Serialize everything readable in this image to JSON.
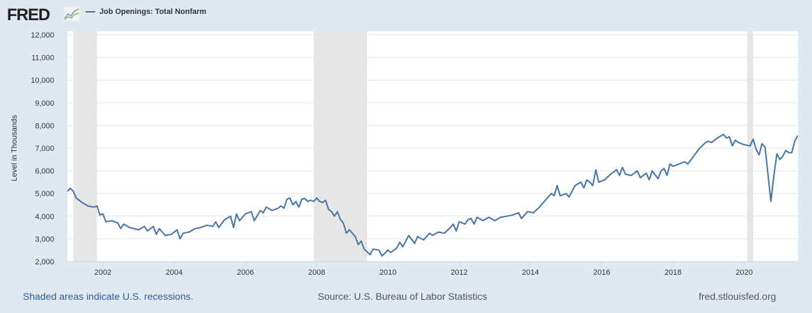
{
  "header": {
    "logo": "FRED",
    "series_label": "Job Openings: Total Nonfarm"
  },
  "footer": {
    "recessions_note": "Shaded areas indicate U.S. recessions.",
    "source": "Source: U.S. Bureau of Labor Statistics",
    "site": "fred.stlouisfed.org"
  },
  "colors": {
    "line": "#4572a7",
    "recession": "#e6e6e6",
    "background": "#e1e9f0"
  },
  "chart_data": {
    "type": "line",
    "title": "Job Openings: Total Nonfarm",
    "xlabel": "",
    "ylabel": "Level in Thousands",
    "ylim": [
      2000,
      12000
    ],
    "xlim": [
      "2001-01",
      "2021-07"
    ],
    "yticks": [
      "2,000",
      "3,000",
      "4,000",
      "5,000",
      "6,000",
      "7,000",
      "8,000",
      "9,000",
      "10,000",
      "11,000",
      "12,000"
    ],
    "ytick_values": [
      2000,
      3000,
      4000,
      5000,
      6000,
      7000,
      8000,
      9000,
      10000,
      11000,
      12000
    ],
    "xticks": [
      "2002",
      "2004",
      "2006",
      "2008",
      "2010",
      "2012",
      "2014",
      "2016",
      "2018",
      "2020"
    ],
    "grid": true,
    "legend": "top-left",
    "recessions": [
      [
        "2001-03",
        "2001-11"
      ],
      [
        "2007-12",
        "2009-06"
      ],
      [
        "2020-02",
        "2020-04"
      ]
    ],
    "series": [
      {
        "name": "Job Openings: Total Nonfarm",
        "points": [
          [
            "2001-01",
            5100
          ],
          [
            "2001-02",
            5230
          ],
          [
            "2001-03",
            5100
          ],
          [
            "2001-04",
            4800
          ],
          [
            "2001-06",
            4600
          ],
          [
            "2001-08",
            4450
          ],
          [
            "2001-10",
            4400
          ],
          [
            "2001-11",
            4450
          ],
          [
            "2001-12",
            4050
          ],
          [
            "2002-01",
            4100
          ],
          [
            "2002-02",
            3750
          ],
          [
            "2002-04",
            3800
          ],
          [
            "2002-06",
            3700
          ],
          [
            "2002-07",
            3450
          ],
          [
            "2002-08",
            3650
          ],
          [
            "2002-10",
            3500
          ],
          [
            "2003-01",
            3400
          ],
          [
            "2003-03",
            3550
          ],
          [
            "2003-04",
            3350
          ],
          [
            "2003-06",
            3550
          ],
          [
            "2003-07",
            3200
          ],
          [
            "2003-08",
            3450
          ],
          [
            "2003-10",
            3150
          ],
          [
            "2003-12",
            3200
          ],
          [
            "2004-02",
            3400
          ],
          [
            "2004-03",
            3000
          ],
          [
            "2004-04",
            3250
          ],
          [
            "2004-06",
            3300
          ],
          [
            "2004-08",
            3450
          ],
          [
            "2004-10",
            3500
          ],
          [
            "2004-12",
            3600
          ],
          [
            "2005-02",
            3550
          ],
          [
            "2005-03",
            3750
          ],
          [
            "2005-04",
            3500
          ],
          [
            "2005-06",
            3850
          ],
          [
            "2005-08",
            4000
          ],
          [
            "2005-09",
            3500
          ],
          [
            "2005-10",
            4100
          ],
          [
            "2005-11",
            3800
          ],
          [
            "2006-01",
            4100
          ],
          [
            "2006-03",
            4200
          ],
          [
            "2006-04",
            3800
          ],
          [
            "2006-06",
            4250
          ],
          [
            "2006-07",
            4150
          ],
          [
            "2006-08",
            4400
          ],
          [
            "2006-10",
            4250
          ],
          [
            "2006-12",
            4350
          ],
          [
            "2007-01",
            4450
          ],
          [
            "2007-02",
            4350
          ],
          [
            "2007-03",
            4750
          ],
          [
            "2007-04",
            4800
          ],
          [
            "2007-05",
            4500
          ],
          [
            "2007-06",
            4650
          ],
          [
            "2007-07",
            4400
          ],
          [
            "2007-08",
            4750
          ],
          [
            "2007-09",
            4780
          ],
          [
            "2007-10",
            4650
          ],
          [
            "2007-11",
            4700
          ],
          [
            "2007-12",
            4650
          ],
          [
            "2008-01",
            4800
          ],
          [
            "2008-02",
            4650
          ],
          [
            "2008-03",
            4600
          ],
          [
            "2008-04",
            4700
          ],
          [
            "2008-05",
            4300
          ],
          [
            "2008-06",
            4200
          ],
          [
            "2008-07",
            4000
          ],
          [
            "2008-08",
            4200
          ],
          [
            "2008-09",
            3850
          ],
          [
            "2008-10",
            3700
          ],
          [
            "2008-11",
            3250
          ],
          [
            "2008-12",
            3400
          ],
          [
            "2009-02",
            3100
          ],
          [
            "2009-03",
            2750
          ],
          [
            "2009-04",
            2900
          ],
          [
            "2009-05",
            2550
          ],
          [
            "2009-07",
            2300
          ],
          [
            "2009-08",
            2550
          ],
          [
            "2009-10",
            2500
          ],
          [
            "2009-11",
            2250
          ],
          [
            "2010-01",
            2500
          ],
          [
            "2010-02",
            2400
          ],
          [
            "2010-04",
            2600
          ],
          [
            "2010-05",
            2850
          ],
          [
            "2010-06",
            2650
          ],
          [
            "2010-08",
            3150
          ],
          [
            "2010-10",
            2800
          ],
          [
            "2010-11",
            3100
          ],
          [
            "2011-01",
            2950
          ],
          [
            "2011-03",
            3250
          ],
          [
            "2011-04",
            3150
          ],
          [
            "2011-06",
            3300
          ],
          [
            "2011-08",
            3250
          ],
          [
            "2011-10",
            3500
          ],
          [
            "2011-11",
            3650
          ],
          [
            "2011-12",
            3350
          ],
          [
            "2012-01",
            3750
          ],
          [
            "2012-03",
            3650
          ],
          [
            "2012-04",
            3850
          ],
          [
            "2012-05",
            3900
          ],
          [
            "2012-06",
            3650
          ],
          [
            "2012-07",
            3950
          ],
          [
            "2012-09",
            3800
          ],
          [
            "2012-11",
            3950
          ],
          [
            "2013-01",
            3800
          ],
          [
            "2013-03",
            3950
          ],
          [
            "2013-05",
            4000
          ],
          [
            "2013-07",
            4050
          ],
          [
            "2013-09",
            4150
          ],
          [
            "2013-10",
            3900
          ],
          [
            "2013-12",
            4200
          ],
          [
            "2014-02",
            4150
          ],
          [
            "2014-04",
            4400
          ],
          [
            "2014-06",
            4700
          ],
          [
            "2014-08",
            5000
          ],
          [
            "2014-09",
            4900
          ],
          [
            "2014-10",
            5350
          ],
          [
            "2014-11",
            4900
          ],
          [
            "2015-01",
            5000
          ],
          [
            "2015-02",
            4850
          ],
          [
            "2015-04",
            5350
          ],
          [
            "2015-06",
            5500
          ],
          [
            "2015-07",
            5250
          ],
          [
            "2015-08",
            5600
          ],
          [
            "2015-09",
            5500
          ],
          [
            "2015-10",
            5350
          ],
          [
            "2015-11",
            6050
          ],
          [
            "2015-12",
            5500
          ],
          [
            "2016-02",
            5600
          ],
          [
            "2016-04",
            5850
          ],
          [
            "2016-06",
            6050
          ],
          [
            "2016-07",
            5800
          ],
          [
            "2016-08",
            6150
          ],
          [
            "2016-09",
            5850
          ],
          [
            "2016-11",
            5800
          ],
          [
            "2017-01",
            6000
          ],
          [
            "2017-02",
            5700
          ],
          [
            "2017-04",
            5900
          ],
          [
            "2017-05",
            5600
          ],
          [
            "2017-06",
            6000
          ],
          [
            "2017-08",
            5650
          ],
          [
            "2017-09",
            6000
          ],
          [
            "2017-10",
            6100
          ],
          [
            "2017-11",
            5800
          ],
          [
            "2017-12",
            6300
          ],
          [
            "2018-01",
            6200
          ],
          [
            "2018-03",
            6300
          ],
          [
            "2018-05",
            6400
          ],
          [
            "2018-06",
            6300
          ],
          [
            "2018-08",
            6650
          ],
          [
            "2018-10",
            7000
          ],
          [
            "2018-12",
            7250
          ],
          [
            "2019-01",
            7300
          ],
          [
            "2019-02",
            7250
          ],
          [
            "2019-04",
            7450
          ],
          [
            "2019-06",
            7600
          ],
          [
            "2019-07",
            7450
          ],
          [
            "2019-08",
            7500
          ],
          [
            "2019-09",
            7100
          ],
          [
            "2019-10",
            7350
          ],
          [
            "2019-11",
            7250
          ],
          [
            "2020-01",
            7150
          ],
          [
            "2020-03",
            7100
          ],
          [
            "2020-04",
            7400
          ],
          [
            "2020-05",
            6950
          ],
          [
            "2020-06",
            6700
          ],
          [
            "2020-07",
            7200
          ],
          [
            "2020-08",
            7050
          ],
          [
            "2020-10",
            4650
          ],
          [
            "2020-11",
            5800
          ],
          [
            "2020-12",
            6750
          ],
          [
            "2021-01",
            6500
          ],
          [
            "2021-02",
            6650
          ],
          [
            "2021-03",
            6900
          ],
          [
            "2021-04",
            6800
          ],
          [
            "2021-05",
            6800
          ],
          [
            "2021-06",
            7300
          ],
          [
            "2021-07",
            7550
          ]
        ]
      }
    ]
  }
}
